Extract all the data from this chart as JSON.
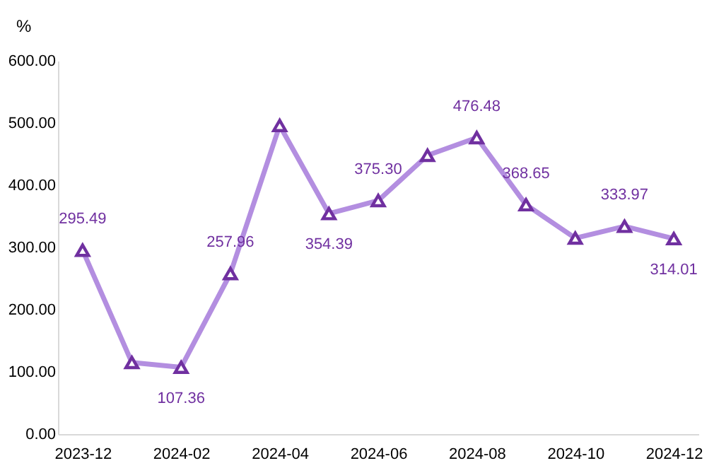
{
  "chart_data": {
    "type": "line",
    "ylabel": "%",
    "categories": [
      "2023-12",
      null,
      "2024-02",
      null,
      "2024-04",
      null,
      "2024-06",
      null,
      "2024-08",
      null,
      "2024-10",
      null,
      "2024-12"
    ],
    "series": [
      {
        "color": "#b38ee0",
        "values": [
          295.49,
          115,
          107.36,
          257.96,
          496,
          354.39,
          375.3,
          448,
          476.48,
          368.65,
          315,
          333.97,
          314.01
        ],
        "value_labels": [
          "295.49",
          null,
          "107.36",
          "257.96",
          null,
          "354.39",
          "375.30",
          null,
          "476.48",
          "368.65",
          null,
          "333.97",
          "314.01"
        ]
      }
    ],
    "ylim": [
      0,
      600
    ],
    "yticks": [
      {
        "value": 0,
        "label": "0.00"
      },
      {
        "value": 100,
        "label": "100.00"
      },
      {
        "value": 200,
        "label": "200.00"
      },
      {
        "value": 300,
        "label": "300.00"
      },
      {
        "value": 400,
        "label": "400.00"
      },
      {
        "value": 500,
        "label": "500.00"
      },
      {
        "value": 600,
        "label": "600.00"
      }
    ],
    "grid": false,
    "marker": "triangle",
    "line_style": "solid"
  }
}
